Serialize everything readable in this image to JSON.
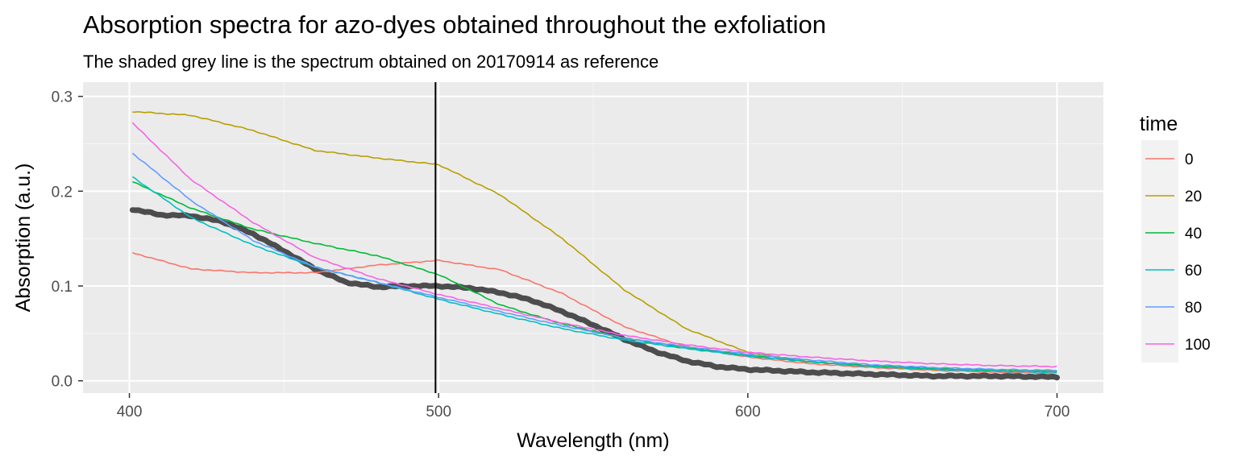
{
  "chart_data": {
    "type": "line",
    "title": "Absorption spectra for azo-dyes obtained throughout the exfoliation",
    "subtitle": "The shaded grey line is the spectrum obtained on 20170914 as reference",
    "xlabel": "Wavelength (nm)",
    "ylabel": "Absorption (a.u.)",
    "xlim": [
      385,
      715
    ],
    "ylim": [
      -0.013,
      0.315
    ],
    "x_ticks": [
      400,
      500,
      600,
      700
    ],
    "y_ticks": [
      0.0,
      0.1,
      0.2,
      0.3
    ],
    "x_tick_labels": [
      "400",
      "500",
      "600",
      "700"
    ],
    "y_tick_labels": [
      "0.0",
      "0.1",
      "0.2",
      "0.3"
    ],
    "grid": true,
    "legend_position": "right",
    "legend_title": "time",
    "vline": {
      "x": 499,
      "color": "#000000"
    },
    "x": [
      401,
      420,
      440,
      460,
      480,
      500,
      520,
      540,
      560,
      580,
      600,
      620,
      640,
      660,
      680,
      700
    ],
    "series": [
      {
        "name": "0",
        "color": "#F8766D",
        "values": [
          0.135,
          0.118,
          0.114,
          0.114,
          0.122,
          0.127,
          0.117,
          0.092,
          0.057,
          0.036,
          0.025,
          0.018,
          0.014,
          0.011,
          0.009,
          0.008
        ]
      },
      {
        "name": "20",
        "color": "#B79F00",
        "values": [
          0.284,
          0.28,
          0.264,
          0.243,
          0.235,
          0.228,
          0.196,
          0.15,
          0.096,
          0.055,
          0.03,
          0.02,
          0.015,
          0.012,
          0.011,
          0.01
        ]
      },
      {
        "name": "40",
        "color": "#00BA38",
        "values": [
          0.21,
          0.182,
          0.16,
          0.145,
          0.132,
          0.112,
          0.08,
          0.06,
          0.045,
          0.035,
          0.027,
          0.02,
          0.016,
          0.013,
          0.011,
          0.01
        ]
      },
      {
        "name": "60",
        "color": "#00BFC4",
        "values": [
          0.215,
          0.172,
          0.143,
          0.12,
          0.104,
          0.086,
          0.07,
          0.055,
          0.043,
          0.034,
          0.026,
          0.02,
          0.015,
          0.012,
          0.01,
          0.009
        ]
      },
      {
        "name": "80",
        "color": "#619CFF",
        "values": [
          0.24,
          0.19,
          0.148,
          0.12,
          0.104,
          0.088,
          0.073,
          0.058,
          0.045,
          0.036,
          0.028,
          0.022,
          0.017,
          0.014,
          0.012,
          0.011
        ]
      },
      {
        "name": "100",
        "color": "#F564E3",
        "values": [
          0.272,
          0.212,
          0.167,
          0.13,
          0.108,
          0.091,
          0.076,
          0.061,
          0.048,
          0.038,
          0.03,
          0.025,
          0.021,
          0.018,
          0.016,
          0.015
        ]
      }
    ],
    "reference": {
      "color": "#4d4d4d",
      "x": [
        401,
        410,
        420,
        430,
        440,
        450,
        460,
        470,
        480,
        490,
        500,
        510,
        520,
        530,
        540,
        550,
        560,
        570,
        580,
        590,
        600,
        620,
        640,
        660,
        680,
        700
      ],
      "values": [
        0.181,
        0.175,
        0.174,
        0.168,
        0.155,
        0.137,
        0.118,
        0.104,
        0.099,
        0.1,
        0.1,
        0.098,
        0.093,
        0.085,
        0.073,
        0.059,
        0.044,
        0.031,
        0.021,
        0.015,
        0.012,
        0.009,
        0.007,
        0.005,
        0.005,
        0.004
      ]
    }
  }
}
